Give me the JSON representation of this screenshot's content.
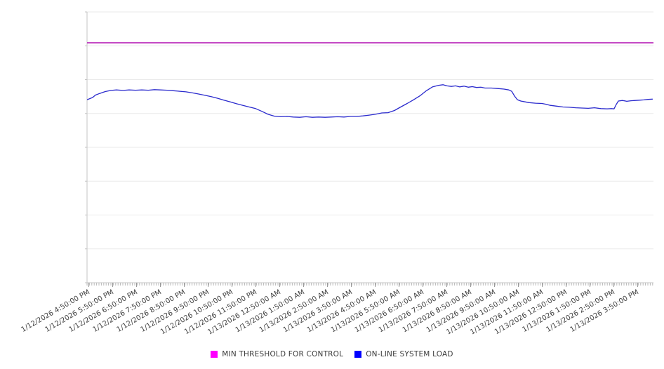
{
  "page": {
    "background": "#ffffff"
  },
  "chart_data": {
    "type": "line",
    "title": "",
    "xlabel": "",
    "ylabel": "",
    "grid": "horizontal gridlines on, 9 lines including top and bottom",
    "legend_position": "bottom-center",
    "y_axis": {
      "labels_visible": false,
      "scale_note": "no y-axis tick labels shown; values below are percent of plot height (0 = bottom gridline, 100 = top gridline)",
      "ylim": [
        0,
        100
      ],
      "gridline_interval": 12.5
    },
    "x_axis": {
      "tick_interval": "1 hour",
      "minor_ticks_per_hour": 10,
      "label_rotation_deg": -30,
      "tick_labels": [
        "1/12/2026 4:50:00 PM",
        "1/12/2026 5:50:00 PM",
        "1/12/2026 6:50:00 PM",
        "1/12/2026 7:50:00 PM",
        "1/12/2026 8:50:00 PM",
        "1/12/2026 9:50:00 PM",
        "1/12/2026 10:50:00 PM",
        "1/12/2026 11:50:00 PM",
        "1/13/2026 12:50:00 AM",
        "1/13/2026 1:50:00 AM",
        "1/13/2026 2:50:00 AM",
        "1/13/2026 3:50:00 AM",
        "1/13/2026 4:50:00 AM",
        "1/13/2026 5:50:00 AM",
        "1/13/2026 6:50:00 AM",
        "1/13/2026 7:50:00 AM",
        "1/13/2026 8:50:00 AM",
        "1/13/2026 9:50:00 AM",
        "1/13/2026 10:50:00 AM",
        "1/13/2026 11:50:00 AM",
        "1/13/2026 12:50:00 PM",
        "1/13/2026 1:50:00 PM",
        "1/13/2026 2:50:00 PM",
        "1/13/2026 3:50:00 PM"
      ]
    },
    "series": [
      {
        "name": "MIN THRESHOLD FOR CONTROL",
        "legend_color": "#FF00FF",
        "line_color": "#BC2FBC",
        "type": "constant",
        "value": 88.6
      },
      {
        "name": "ON-LINE SYSTEM LOAD",
        "legend_color": "#0000FF",
        "line_color": "#2A2ACD",
        "type": "line",
        "points_format": "[hours_after_first_tick, percent_of_plot_height]",
        "points": [
          [
            -0.07,
            67.6
          ],
          [
            0.16,
            68.4
          ],
          [
            0.28,
            69.3
          ],
          [
            0.46,
            69.9
          ],
          [
            0.69,
            70.6
          ],
          [
            0.93,
            71.0
          ],
          [
            1.16,
            71.2
          ],
          [
            1.43,
            71.0
          ],
          [
            1.69,
            71.2
          ],
          [
            1.96,
            71.1
          ],
          [
            2.22,
            71.2
          ],
          [
            2.49,
            71.1
          ],
          [
            2.75,
            71.3
          ],
          [
            3.01,
            71.2
          ],
          [
            3.28,
            71.1
          ],
          [
            3.54,
            70.9
          ],
          [
            3.81,
            70.7
          ],
          [
            4.07,
            70.5
          ],
          [
            4.34,
            70.1
          ],
          [
            4.6,
            69.7
          ],
          [
            4.87,
            69.2
          ],
          [
            5.13,
            68.7
          ],
          [
            5.4,
            68.1
          ],
          [
            5.66,
            67.4
          ],
          [
            5.93,
            66.8
          ],
          [
            6.19,
            66.1
          ],
          [
            6.46,
            65.5
          ],
          [
            6.72,
            64.9
          ],
          [
            6.99,
            64.3
          ],
          [
            7.25,
            63.3
          ],
          [
            7.51,
            62.2
          ],
          [
            7.78,
            61.5
          ],
          [
            8.04,
            61.3
          ],
          [
            8.31,
            61.4
          ],
          [
            8.57,
            61.2
          ],
          [
            8.84,
            61.1
          ],
          [
            9.1,
            61.3
          ],
          [
            9.37,
            61.1
          ],
          [
            9.63,
            61.2
          ],
          [
            9.9,
            61.1
          ],
          [
            10.16,
            61.2
          ],
          [
            10.43,
            61.3
          ],
          [
            10.69,
            61.2
          ],
          [
            10.96,
            61.4
          ],
          [
            11.22,
            61.4
          ],
          [
            11.49,
            61.6
          ],
          [
            11.75,
            61.9
          ],
          [
            12.01,
            62.2
          ],
          [
            12.28,
            62.7
          ],
          [
            12.54,
            62.8
          ],
          [
            12.81,
            63.6
          ],
          [
            13.07,
            64.9
          ],
          [
            13.34,
            66.2
          ],
          [
            13.6,
            67.5
          ],
          [
            13.87,
            69.0
          ],
          [
            14.13,
            70.8
          ],
          [
            14.4,
            72.3
          ],
          [
            14.66,
            72.9
          ],
          [
            14.84,
            73.1
          ],
          [
            15.01,
            72.7
          ],
          [
            15.19,
            72.5
          ],
          [
            15.37,
            72.7
          ],
          [
            15.54,
            72.3
          ],
          [
            15.72,
            72.6
          ],
          [
            15.9,
            72.2
          ],
          [
            16.07,
            72.4
          ],
          [
            16.25,
            72.1
          ],
          [
            16.43,
            72.2
          ],
          [
            16.6,
            71.9
          ],
          [
            16.87,
            71.9
          ],
          [
            17.13,
            71.7
          ],
          [
            17.4,
            71.5
          ],
          [
            17.6,
            71.2
          ],
          [
            17.72,
            70.7
          ],
          [
            17.84,
            68.9
          ],
          [
            17.96,
            67.6
          ],
          [
            18.1,
            67.1
          ],
          [
            18.28,
            66.8
          ],
          [
            18.46,
            66.5
          ],
          [
            18.72,
            66.3
          ],
          [
            18.99,
            66.2
          ],
          [
            19.16,
            65.9
          ],
          [
            19.34,
            65.5
          ],
          [
            19.6,
            65.2
          ],
          [
            19.87,
            64.9
          ],
          [
            20.13,
            64.8
          ],
          [
            20.4,
            64.6
          ],
          [
            20.66,
            64.5
          ],
          [
            20.93,
            64.4
          ],
          [
            21.19,
            64.6
          ],
          [
            21.46,
            64.3
          ],
          [
            21.72,
            64.2
          ],
          [
            21.9,
            64.3
          ],
          [
            22.01,
            64.2
          ],
          [
            22.1,
            65.8
          ],
          [
            22.19,
            67.1
          ],
          [
            22.37,
            67.3
          ],
          [
            22.54,
            67.0
          ],
          [
            22.72,
            67.2
          ],
          [
            22.9,
            67.3
          ],
          [
            23.07,
            67.4
          ],
          [
            23.25,
            67.5
          ],
          [
            23.43,
            67.7
          ],
          [
            23.63,
            67.8
          ]
        ]
      }
    ],
    "colors": {
      "gridline": "#EAEAEA",
      "axis": "#C4C4C4",
      "minor_tick": "#B8B8B8",
      "label_text": "#3F3F3F"
    }
  }
}
